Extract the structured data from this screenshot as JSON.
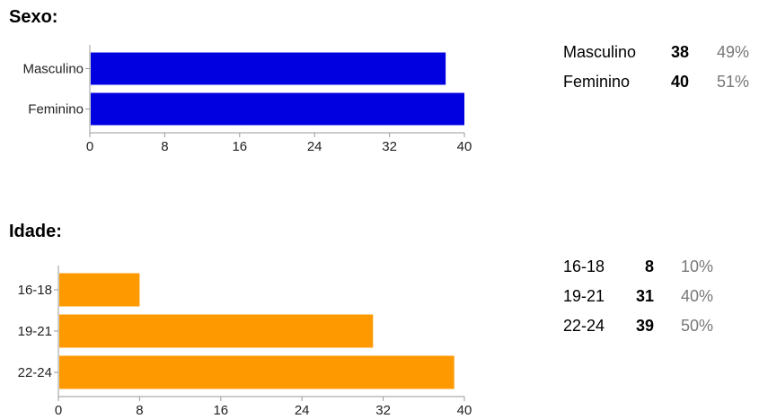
{
  "charts": [
    {
      "title": "Sexo:",
      "color": "#0000e0",
      "chart_data": {
        "type": "bar",
        "orientation": "horizontal",
        "categories": [
          "Masculino",
          "Feminino"
        ],
        "values": [
          38,
          40
        ],
        "xlim": [
          0,
          40
        ],
        "ticks": [
          0,
          8,
          16,
          24,
          32,
          40
        ],
        "grid": false,
        "legend": "none"
      },
      "summary": [
        {
          "label": "Masculino",
          "count": "38",
          "pct": "49%"
        },
        {
          "label": "Feminino",
          "count": "40",
          "pct": "51%"
        }
      ]
    },
    {
      "title": "Idade:",
      "color": "#ff9900",
      "chart_data": {
        "type": "bar",
        "orientation": "horizontal",
        "categories": [
          "16-18",
          "19-21",
          "22-24"
        ],
        "values": [
          8,
          31,
          39
        ],
        "xlim": [
          0,
          40
        ],
        "ticks": [
          0,
          8,
          16,
          24,
          32,
          40
        ],
        "grid": false,
        "legend": "none"
      },
      "summary": [
        {
          "label": "16-18",
          "count": "8",
          "pct": "10%"
        },
        {
          "label": "19-21",
          "count": "31",
          "pct": "40%"
        },
        {
          "label": "22-24",
          "count": "39",
          "pct": "50%"
        }
      ]
    }
  ]
}
